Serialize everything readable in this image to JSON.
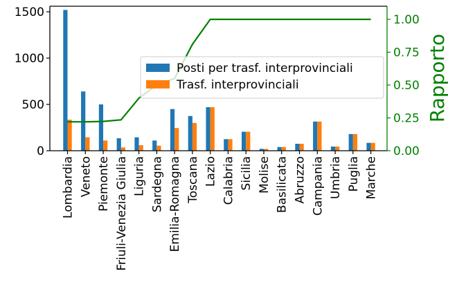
{
  "chart_data": {
    "type": "bar",
    "categories": [
      "Lombardia",
      "Veneto",
      "Piemonte",
      "Friuli-Venezia Giulia",
      "Liguria",
      "Sardegna",
      "Emilia-Romagna",
      "Toscana",
      "Lazio",
      "Calabria",
      "Sicilia",
      "Molise",
      "Basilicata",
      "Abruzzo",
      "Campania",
      "Umbria",
      "Puglia",
      "Marche"
    ],
    "series": [
      {
        "name": "Posti per trasf. interprovinciali",
        "color": "#1f77b4",
        "values": [
          1520,
          640,
          500,
          135,
          145,
          110,
          450,
          375,
          470,
          125,
          205,
          20,
          40,
          75,
          315,
          45,
          180,
          85
        ]
      },
      {
        "name": "Trasf. interprovinciali",
        "color": "#ff7f0e",
        "values": [
          335,
          145,
          110,
          35,
          60,
          55,
          245,
          300,
          470,
          125,
          205,
          20,
          40,
          75,
          315,
          45,
          180,
          85
        ]
      }
    ],
    "line_series": {
      "name": "",
      "color": "#008000",
      "values": [
        0.22,
        0.22,
        0.223,
        0.235,
        0.4,
        0.5,
        0.55,
        0.81,
        1.0,
        1.0,
        1.0,
        1.0,
        1.0,
        1.0,
        1.0,
        1.0,
        1.0,
        1.0
      ]
    },
    "y_left": {
      "label": "",
      "ylim": [
        0,
        1560
      ],
      "ticks": [
        0,
        500,
        1000,
        1500
      ]
    },
    "y_right": {
      "label": "Rapporto",
      "ylim": [
        0,
        1.1
      ],
      "ticks": [
        "0.00",
        "0.25",
        "0.50",
        "0.75",
        "1.00"
      ],
      "color": "#008000"
    },
    "xlabel": "",
    "title": "",
    "grid": false,
    "legend_placement": "center-right"
  }
}
